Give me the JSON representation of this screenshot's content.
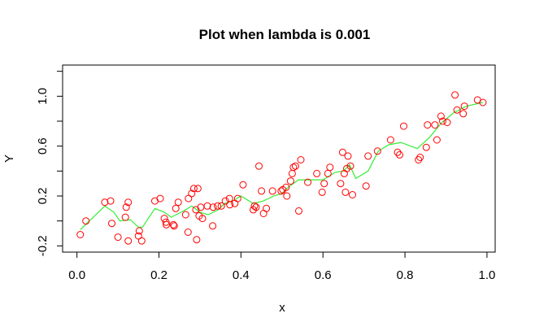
{
  "chart_data": {
    "type": "scatter",
    "title": "Plot when lambda is 0.001",
    "xlabel": "x",
    "ylabel": "Y",
    "xlim": [
      -0.035,
      1.02
    ],
    "ylim": [
      -0.25,
      1.25
    ],
    "x_ticks": [
      0.0,
      0.2,
      0.4,
      0.6,
      0.8,
      1.0
    ],
    "x_tick_labels": [
      "0.0",
      "0.2",
      "0.4",
      "0.6",
      "0.8",
      "1.0"
    ],
    "y_ticks": [
      -0.2,
      0.0,
      0.2,
      0.4,
      0.6,
      0.8,
      1.0,
      1.2
    ],
    "y_tick_labels": [
      "-0.2",
      "",
      "0.2",
      "",
      "0.6",
      "",
      "1.0",
      ""
    ],
    "point_color": "#ff0000",
    "line_color": "#33ee33",
    "grid": false,
    "legend": "none",
    "points": [
      [
        0.008,
        -0.11
      ],
      [
        0.022,
        0.0
      ],
      [
        0.068,
        0.15
      ],
      [
        0.082,
        0.16
      ],
      [
        0.085,
        -0.02
      ],
      [
        0.1,
        -0.13
      ],
      [
        0.118,
        0.03
      ],
      [
        0.12,
        0.11
      ],
      [
        0.125,
        0.15
      ],
      [
        0.125,
        -0.16
      ],
      [
        0.15,
        -0.12
      ],
      [
        0.152,
        -0.08
      ],
      [
        0.158,
        -0.16
      ],
      [
        0.19,
        0.16
      ],
      [
        0.203,
        0.18
      ],
      [
        0.213,
        0.02
      ],
      [
        0.217,
        -0.01
      ],
      [
        0.218,
        -0.03
      ],
      [
        0.235,
        -0.03
      ],
      [
        0.237,
        -0.04
      ],
      [
        0.241,
        0.1
      ],
      [
        0.247,
        0.15
      ],
      [
        0.265,
        0.05
      ],
      [
        0.271,
        -0.09
      ],
      [
        0.272,
        0.18
      ],
      [
        0.28,
        0.22
      ],
      [
        0.285,
        0.26
      ],
      [
        0.29,
        0.09
      ],
      [
        0.292,
        -0.15
      ],
      [
        0.295,
        0.26
      ],
      [
        0.298,
        0.04
      ],
      [
        0.302,
        0.11
      ],
      [
        0.306,
        0.02
      ],
      [
        0.318,
        0.12
      ],
      [
        0.331,
        -0.04
      ],
      [
        0.332,
        0.11
      ],
      [
        0.343,
        0.12
      ],
      [
        0.352,
        0.12
      ],
      [
        0.362,
        0.16
      ],
      [
        0.372,
        0.18
      ],
      [
        0.373,
        0.13
      ],
      [
        0.385,
        0.14
      ],
      [
        0.392,
        0.18
      ],
      [
        0.405,
        0.29
      ],
      [
        0.43,
        0.09
      ],
      [
        0.433,
        0.12
      ],
      [
        0.437,
        0.11
      ],
      [
        0.444,
        0.44
      ],
      [
        0.45,
        0.24
      ],
      [
        0.455,
        0.06
      ],
      [
        0.462,
        0.1
      ],
      [
        0.477,
        0.24
      ],
      [
        0.498,
        0.24
      ],
      [
        0.502,
        0.25
      ],
      [
        0.51,
        0.27
      ],
      [
        0.512,
        0.2
      ],
      [
        0.521,
        0.32
      ],
      [
        0.525,
        0.38
      ],
      [
        0.528,
        0.43
      ],
      [
        0.533,
        0.44
      ],
      [
        0.541,
        0.08
      ],
      [
        0.546,
        0.49
      ],
      [
        0.563,
        0.31
      ],
      [
        0.585,
        0.38
      ],
      [
        0.598,
        0.23
      ],
      [
        0.603,
        0.3
      ],
      [
        0.612,
        0.38
      ],
      [
        0.617,
        0.43
      ],
      [
        0.643,
        0.3
      ],
      [
        0.648,
        0.55
      ],
      [
        0.652,
        0.38
      ],
      [
        0.655,
        0.23
      ],
      [
        0.658,
        0.42
      ],
      [
        0.661,
        0.52
      ],
      [
        0.667,
        0.44
      ],
      [
        0.672,
        0.21
      ],
      [
        0.705,
        0.28
      ],
      [
        0.71,
        0.52
      ],
      [
        0.733,
        0.56
      ],
      [
        0.765,
        0.65
      ],
      [
        0.782,
        0.55
      ],
      [
        0.787,
        0.53
      ],
      [
        0.797,
        0.76
      ],
      [
        0.833,
        0.49
      ],
      [
        0.837,
        0.51
      ],
      [
        0.852,
        0.59
      ],
      [
        0.855,
        0.77
      ],
      [
        0.873,
        0.77
      ],
      [
        0.878,
        0.65
      ],
      [
        0.888,
        0.84
      ],
      [
        0.892,
        0.8
      ],
      [
        0.903,
        0.79
      ],
      [
        0.922,
        1.01
      ],
      [
        0.927,
        0.89
      ],
      [
        0.942,
        0.86
      ],
      [
        0.945,
        0.92
      ],
      [
        0.977,
        0.97
      ],
      [
        0.99,
        0.95
      ]
    ],
    "fitted_line": [
      [
        0.008,
        -0.07
      ],
      [
        0.04,
        0.03
      ],
      [
        0.068,
        0.12
      ],
      [
        0.09,
        0.07
      ],
      [
        0.105,
        0.0
      ],
      [
        0.13,
        0.01
      ],
      [
        0.15,
        -0.05
      ],
      [
        0.16,
        -0.05
      ],
      [
        0.19,
        0.1
      ],
      [
        0.213,
        0.07
      ],
      [
        0.23,
        0.03
      ],
      [
        0.26,
        0.08
      ],
      [
        0.28,
        0.12
      ],
      [
        0.3,
        0.07
      ],
      [
        0.32,
        0.05
      ],
      [
        0.345,
        0.09
      ],
      [
        0.36,
        0.14
      ],
      [
        0.38,
        0.16
      ],
      [
        0.4,
        0.2
      ],
      [
        0.43,
        0.14
      ],
      [
        0.455,
        0.16
      ],
      [
        0.48,
        0.2
      ],
      [
        0.5,
        0.22
      ],
      [
        0.515,
        0.27
      ],
      [
        0.54,
        0.33
      ],
      [
        0.57,
        0.33
      ],
      [
        0.6,
        0.33
      ],
      [
        0.63,
        0.39
      ],
      [
        0.65,
        0.4
      ],
      [
        0.665,
        0.45
      ],
      [
        0.68,
        0.34
      ],
      [
        0.71,
        0.4
      ],
      [
        0.735,
        0.56
      ],
      [
        0.76,
        0.61
      ],
      [
        0.79,
        0.63
      ],
      [
        0.83,
        0.58
      ],
      [
        0.86,
        0.67
      ],
      [
        0.89,
        0.79
      ],
      [
        0.92,
        0.87
      ],
      [
        0.95,
        0.92
      ],
      [
        0.99,
        0.95
      ]
    ]
  }
}
